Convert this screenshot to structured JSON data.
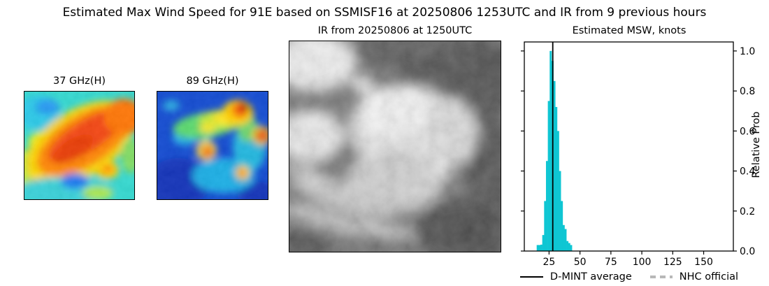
{
  "figure_title": "Estimated Max Wind Speed for 91E based on SSMISF16 at 20250806 1253UTC and IR from 9 previous hours",
  "panels": {
    "mw37": {
      "label": "37 GHz(H)",
      "dominant_colors": [
        "#f4420a",
        "#ff8400",
        "#ffd600",
        "#2fd8cf",
        "#2196f3"
      ]
    },
    "mw89": {
      "label": "89 GHz(H)",
      "dominant_colors": [
        "#0d47d1",
        "#18b8e8",
        "#7adc50",
        "#ffe822",
        "#e02800",
        "#8c1000"
      ]
    },
    "ir": {
      "title": "IR from 20250806 at 1250UTC",
      "dominant_colors": [
        "#6a6a6a",
        "#efefef",
        "#454545"
      ]
    },
    "hist": {
      "title": "Estimated MSW, knots",
      "ylabel": "Relative Prob"
    }
  },
  "legend": {
    "dmint": {
      "label": "D-MINT average",
      "line_color": "#000000",
      "style": "solid"
    },
    "nhc": {
      "label": "NHC official",
      "line_color": "#b8b8b8",
      "style": "dashed"
    }
  },
  "chart_data": {
    "type": "bar",
    "subtype": "histogram",
    "title": "Estimated MSW, knots",
    "xlabel": "knots",
    "ylabel": "Relative Prob",
    "xlim": [
      5,
      174
    ],
    "ylim": [
      0,
      1.045
    ],
    "x_ticks": [
      25,
      50,
      75,
      100,
      125,
      150
    ],
    "y_ticks": [
      0.0,
      0.2,
      0.4,
      0.6,
      0.8,
      1.0
    ],
    "grid": false,
    "legend_position": "below",
    "bar_color": "#0fc6d3",
    "bin_width_knots": 1.5,
    "bins": [
      {
        "start": 15.0,
        "height": 0.03
      },
      {
        "start": 16.5,
        "height": 0.03
      },
      {
        "start": 18.0,
        "height": 0.032
      },
      {
        "start": 19.5,
        "height": 0.08
      },
      {
        "start": 21.0,
        "height": 0.25
      },
      {
        "start": 22.5,
        "height": 0.45
      },
      {
        "start": 24.0,
        "height": 0.75
      },
      {
        "start": 25.5,
        "height": 1.0
      },
      {
        "start": 27.0,
        "height": 0.95
      },
      {
        "start": 28.5,
        "height": 0.85
      },
      {
        "start": 30.0,
        "height": 0.72
      },
      {
        "start": 31.5,
        "height": 0.6
      },
      {
        "start": 33.0,
        "height": 0.4
      },
      {
        "start": 34.5,
        "height": 0.25
      },
      {
        "start": 36.0,
        "height": 0.13
      },
      {
        "start": 37.5,
        "height": 0.11
      },
      {
        "start": 39.0,
        "height": 0.05
      },
      {
        "start": 40.5,
        "height": 0.04
      },
      {
        "start": 42.0,
        "height": 0.03
      }
    ],
    "d_mint_average_knots": 28
  }
}
